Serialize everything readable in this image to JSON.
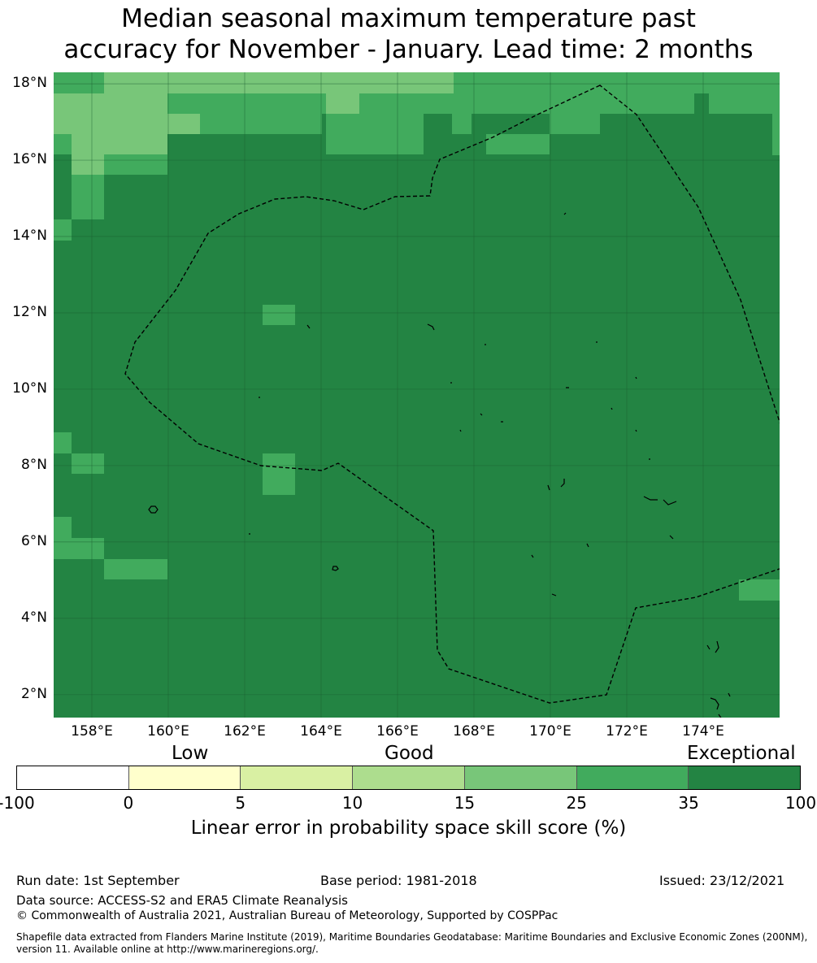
{
  "title_line1": "Median seasonal maximum temperature past",
  "title_line2": "accuracy for November - January. Lead time: 2 months",
  "map": {
    "lon_range": [
      157,
      176
    ],
    "lat_range": [
      1.4,
      18.3
    ],
    "y_labels": [
      "18°N",
      "16°N",
      "14°N",
      "12°N",
      "10°N",
      "8°N",
      "6°N",
      "4°N",
      "2°N"
    ],
    "x_labels": [
      "158°E",
      "160°E",
      "162°E",
      "164°E",
      "166°E",
      "168°E",
      "170°E",
      "172°E",
      "174°E"
    ],
    "category_colors": [
      "#ffffff",
      "#ffffcc",
      "#d9f0a3",
      "#addd8e",
      "#78c679",
      "#41ab5d",
      "#238443"
    ],
    "grid_color": "#1a5c30",
    "boundary_style": "dashed-black",
    "island_style": "solid-black"
  },
  "colorbar": {
    "words": [
      "Low",
      "Good",
      "Exceptional"
    ],
    "ticks": [
      "-100",
      "0",
      "5",
      "10",
      "15",
      "25",
      "35",
      "100"
    ],
    "title": "Linear error in probability space skill score (%)"
  },
  "footer": {
    "run_date": "Run date: 1st September",
    "base_period": "Base period: 1981-2018",
    "issued": "Issued: 23/12/2021",
    "data_source": "Data source: ACCESS-S2 and ERA5 Climate Reanalysis",
    "copyright": "© Commonwealth of Australia 2021, Australian Bureau of Meteorology, Supported by COSPPac",
    "shapefile_note": "Shapefile data extracted from Flanders Marine Institute (2019), Maritime Boundaries Geodatabase: Maritime Boundaries and Exclusive Economic Zones (200NM), version 11. Available online at http://www.marineregions.org/."
  }
}
